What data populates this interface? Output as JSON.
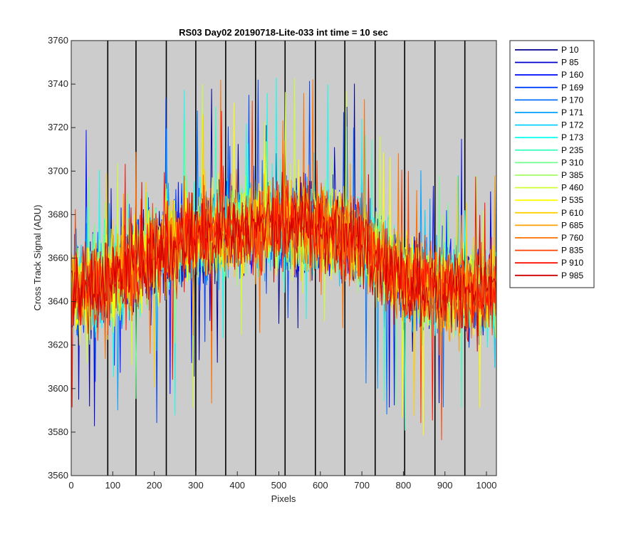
{
  "chart_data": {
    "type": "line",
    "title": "RS03 Day02 20190718-Lite-033 int time = 10 sec",
    "xlabel": "Pixels",
    "ylabel": "Cross Track Signal (ADU)",
    "xlim": [
      0,
      1024
    ],
    "ylim": [
      3560,
      3760
    ],
    "xticks": [
      0,
      100,
      200,
      300,
      400,
      500,
      600,
      700,
      800,
      900,
      1000
    ],
    "yticks": [
      3560,
      3580,
      3600,
      3620,
      3640,
      3660,
      3680,
      3700,
      3720,
      3740,
      3760
    ],
    "background_color": "#cccccc",
    "vertical_lines": [
      88,
      156,
      229,
      300,
      372,
      444,
      515,
      588,
      659,
      732,
      803,
      876,
      948
    ],
    "legend_position": "outside-right",
    "profile": [
      {
        "x": 0,
        "y": 3645
      },
      {
        "x": 100,
        "y": 3650
      },
      {
        "x": 200,
        "y": 3662
      },
      {
        "x": 300,
        "y": 3670
      },
      {
        "x": 400,
        "y": 3674
      },
      {
        "x": 500,
        "y": 3676
      },
      {
        "x": 600,
        "y": 3675
      },
      {
        "x": 700,
        "y": 3668
      },
      {
        "x": 800,
        "y": 3650
      },
      {
        "x": 900,
        "y": 3645
      },
      {
        "x": 1024,
        "y": 3645
      }
    ],
    "noise_amplitude": 18,
    "series": [
      {
        "name": "P 10",
        "color": "#00008f"
      },
      {
        "name": "P 85",
        "color": "#0000cf"
      },
      {
        "name": "P 160",
        "color": "#0010ff"
      },
      {
        "name": "P 169",
        "color": "#0040ff"
      },
      {
        "name": "P 170",
        "color": "#0070ff"
      },
      {
        "name": "P 171",
        "color": "#00a0ff"
      },
      {
        "name": "P 172",
        "color": "#00d0ff"
      },
      {
        "name": "P 173",
        "color": "#10ffef"
      },
      {
        "name": "P 235",
        "color": "#40ffbf"
      },
      {
        "name": "P 310",
        "color": "#70ff8f"
      },
      {
        "name": "P 385",
        "color": "#a0ff60"
      },
      {
        "name": "P 460",
        "color": "#cfff30"
      },
      {
        "name": "P 535",
        "color": "#ffff00"
      },
      {
        "name": "P 610",
        "color": "#ffcf00"
      },
      {
        "name": "P 685",
        "color": "#ffa000"
      },
      {
        "name": "P 760",
        "color": "#ff7000"
      },
      {
        "name": "P 835",
        "color": "#ff4000"
      },
      {
        "name": "P 910",
        "color": "#ff1000"
      },
      {
        "name": "P 985",
        "color": "#cf0000"
      }
    ]
  }
}
